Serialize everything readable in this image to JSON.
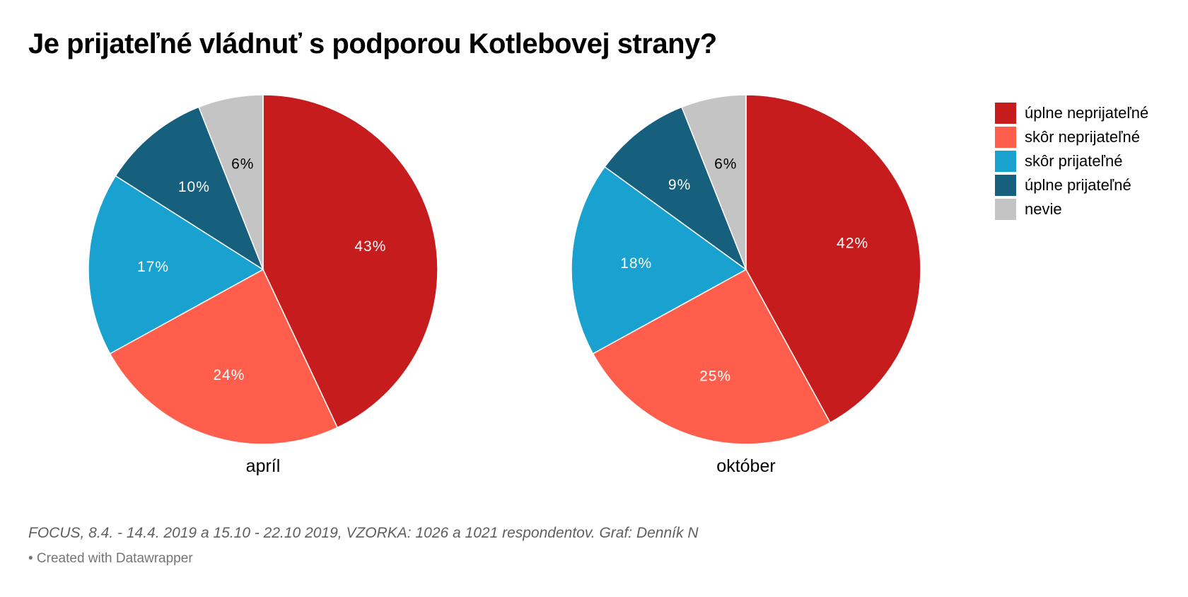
{
  "title": "Je prijateľné vládnuť s podporou Kotlebovej strany?",
  "legend": [
    {
      "label": "úplne neprijateľné",
      "color": "#c71c1e"
    },
    {
      "label": "skôr neprijateľné",
      "color": "#ff5e4c"
    },
    {
      "label": "skôr prijateľné",
      "color": "#19a1cf"
    },
    {
      "label": "úplne prijateľné",
      "color": "#16607e"
    },
    {
      "label": "nevie",
      "color": "#c4c4c4"
    }
  ],
  "chart_data": [
    {
      "type": "pie",
      "label": "apríl",
      "categories": [
        "úplne neprijateľné",
        "skôr neprijateľné",
        "skôr prijateľné",
        "úplne prijateľné",
        "nevie"
      ],
      "values": [
        43,
        24,
        17,
        10,
        6
      ],
      "data_labels": [
        "43%",
        "24%",
        "17%",
        "10%",
        "6%"
      ]
    },
    {
      "type": "pie",
      "label": "október",
      "categories": [
        "úplne neprijateľné",
        "skôr neprijateľné",
        "skôr prijateľné",
        "úplne prijateľné",
        "nevie"
      ],
      "values": [
        42,
        25,
        18,
        9,
        6
      ],
      "data_labels": [
        "42%",
        "25%",
        "18%",
        "9%",
        "6%"
      ]
    }
  ],
  "source": "FOCUS, 8.4. - 14.4. 2019 a 15.10 - 22.10 2019, VZORKA: 1026 a 1021 respondentov. Graf: Denník N",
  "credit": "• Created with Datawrapper"
}
